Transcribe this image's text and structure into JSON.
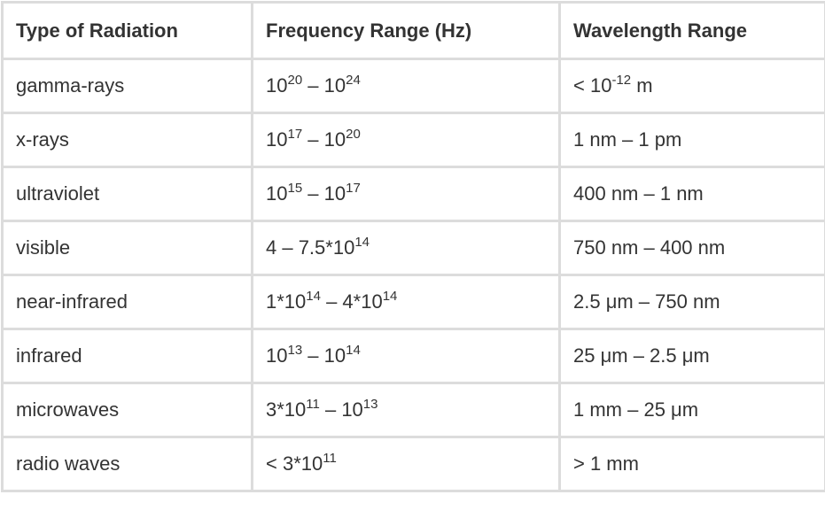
{
  "table": {
    "header": [
      "Type of Radiation",
      "Frequency Range (Hz)",
      "Wavelength Range"
    ],
    "rows": [
      [
        "gamma-rays",
        [
          "10",
          {
            "sup": "20"
          },
          " – 10",
          {
            "sup": "24"
          }
        ],
        [
          "< 10",
          {
            "sup": "-12"
          },
          " m"
        ]
      ],
      [
        "x-rays",
        [
          "10",
          {
            "sup": "17"
          },
          " – 10",
          {
            "sup": "20"
          }
        ],
        "1 nm – 1 pm"
      ],
      [
        "ultraviolet",
        [
          "10",
          {
            "sup": "15"
          },
          " – 10",
          {
            "sup": "17"
          }
        ],
        "400 nm – 1 nm"
      ],
      [
        "visible",
        [
          "4 – 7.5*10",
          {
            "sup": "14"
          }
        ],
        "750 nm – 400 nm"
      ],
      [
        "near-infrared",
        [
          "1*10",
          {
            "sup": "14"
          },
          " – 4*10",
          {
            "sup": "14"
          }
        ],
        "2.5 μm – 750 nm"
      ],
      [
        "infrared",
        [
          "10",
          {
            "sup": "13"
          },
          " – 10",
          {
            "sup": "14"
          }
        ],
        "25 μm – 2.5 μm"
      ],
      [
        "microwaves",
        [
          "3*10",
          {
            "sup": "11"
          },
          " – 10",
          {
            "sup": "13"
          }
        ],
        "1 mm – 25 μm"
      ],
      [
        "radio waves",
        [
          "< 3*10",
          {
            "sup": "11"
          }
        ],
        "> 1 mm"
      ]
    ]
  }
}
